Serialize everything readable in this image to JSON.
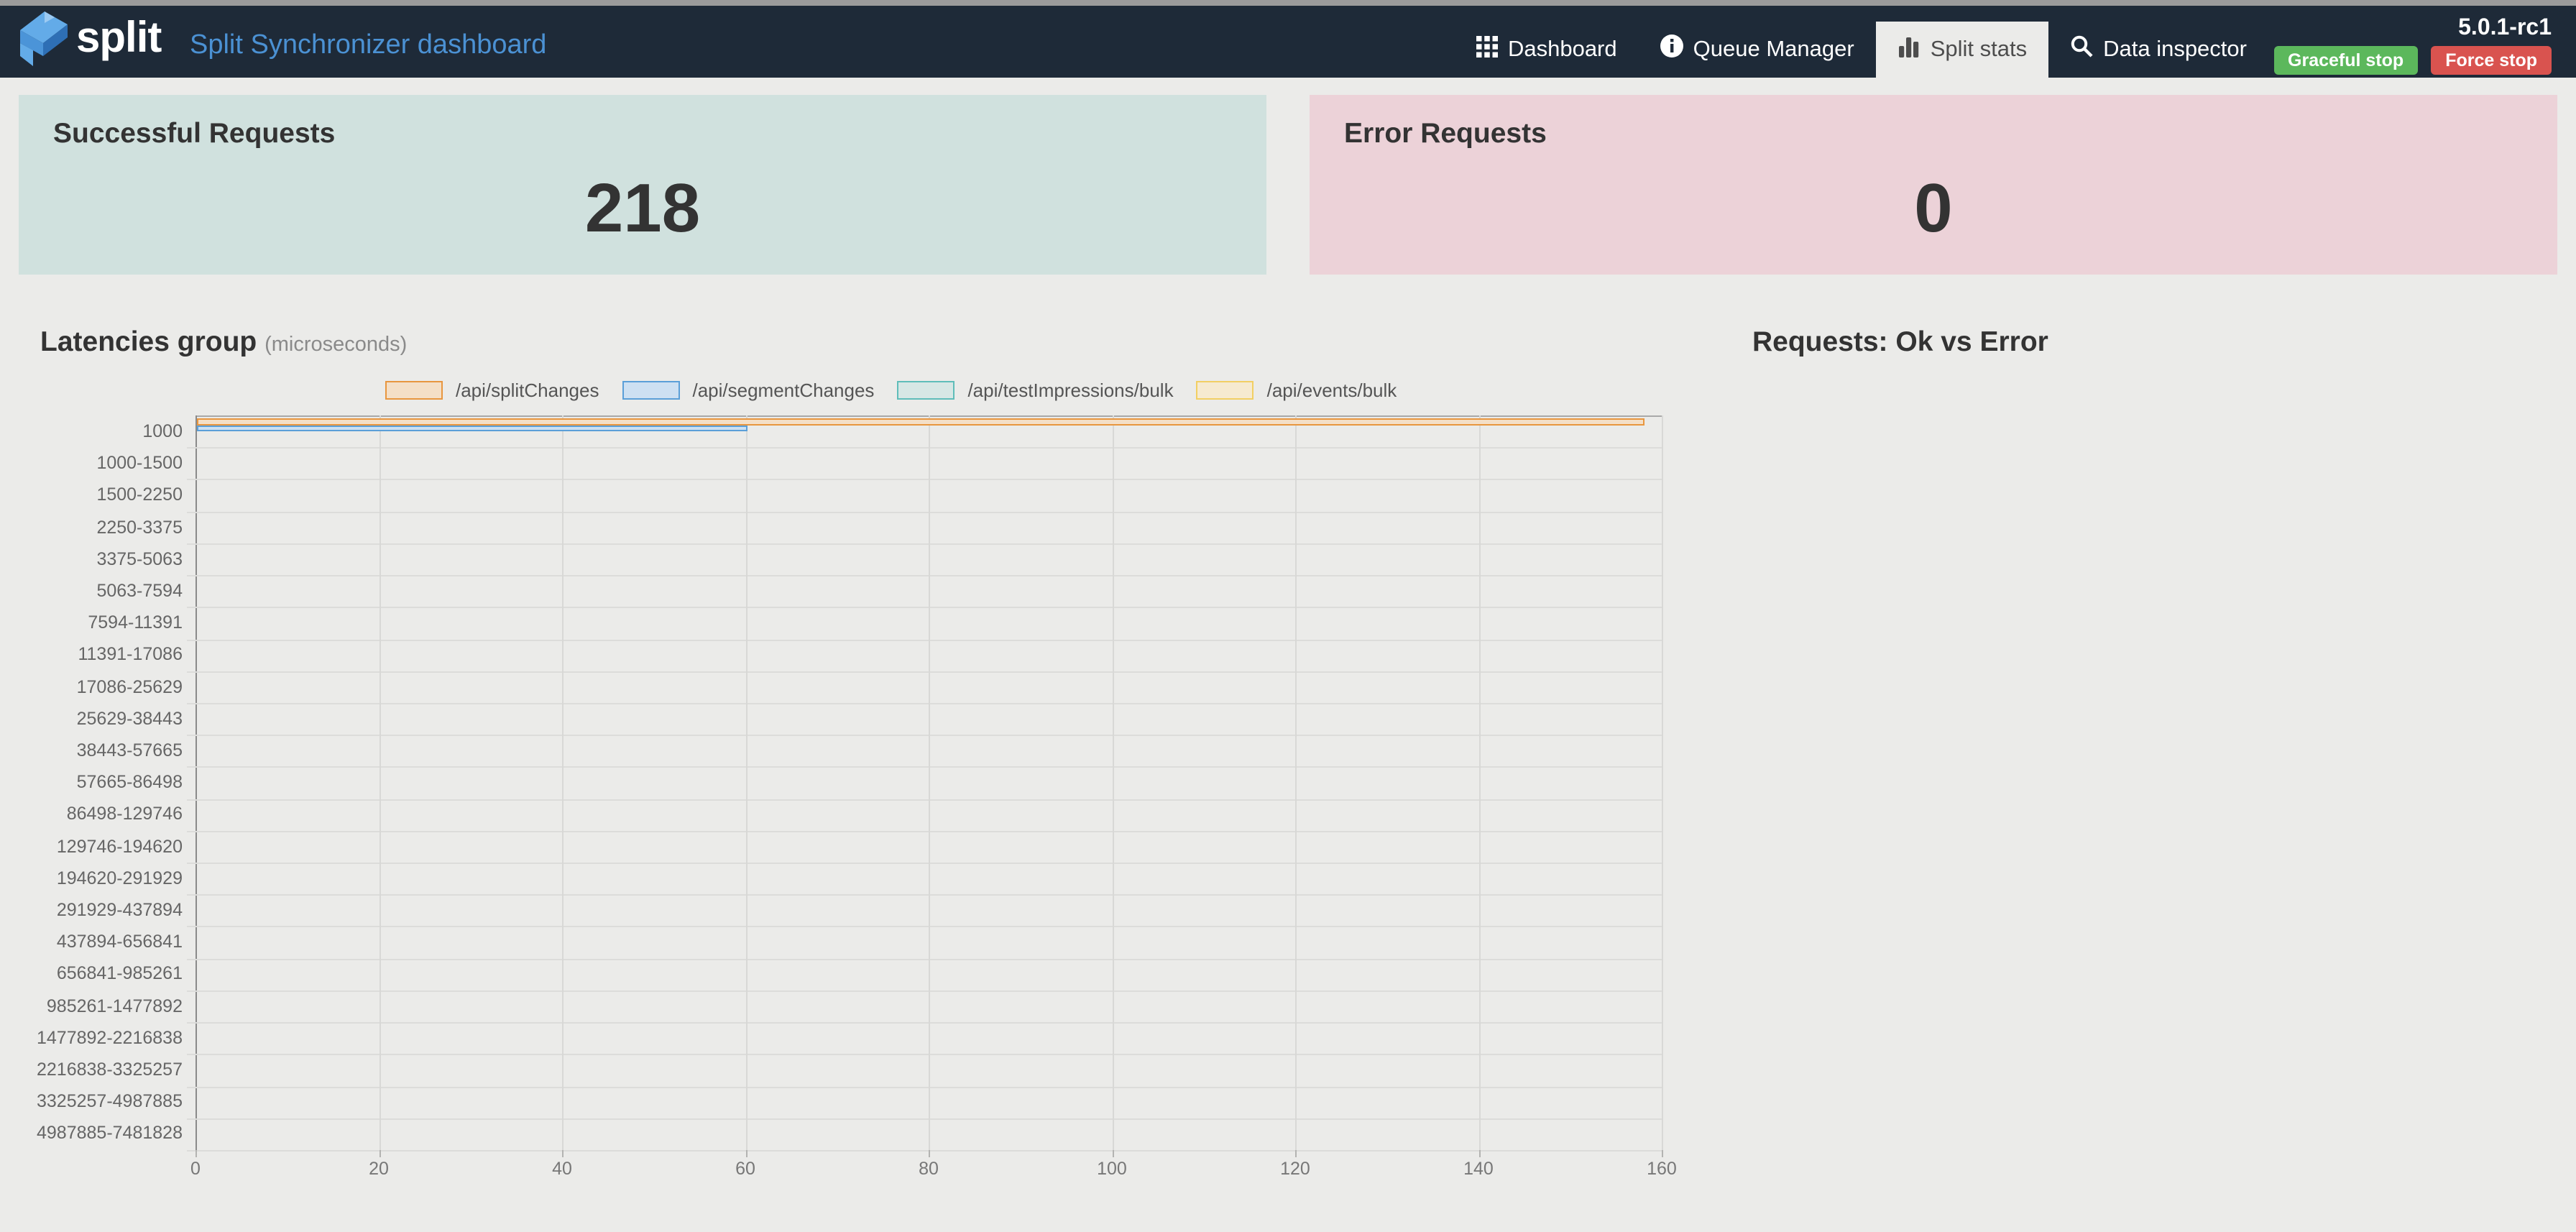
{
  "navbar": {
    "brand": "split",
    "title": "Split Synchronizer dashboard",
    "items": [
      {
        "label": "Dashboard",
        "icon": "grid-icon",
        "active": false
      },
      {
        "label": "Queue Manager",
        "icon": "info-icon",
        "active": false
      },
      {
        "label": "Split stats",
        "icon": "bar-chart-icon",
        "active": true
      },
      {
        "label": "Data inspector",
        "icon": "search-icon",
        "active": false
      }
    ],
    "version": "5.0.1-rc1",
    "graceful_stop_label": "Graceful stop",
    "force_stop_label": "Force stop"
  },
  "cards": {
    "success": {
      "title": "Successful Requests",
      "value": "218",
      "bg": "#d0e1de"
    },
    "error": {
      "title": "Error Requests",
      "value": "0",
      "bg": "#ecd2d8"
    }
  },
  "sections": {
    "latencies_title": "Latencies group",
    "latencies_unit": "(microseconds)",
    "requests_title": "Requests: Ok vs Error"
  },
  "colors": {
    "navbar_bg": "#1e2a38",
    "navbar_title": "#4b91d3",
    "page_bg": "#ebebe9",
    "graceful_stop": "#5cb85c",
    "force_stop": "#d9534f"
  },
  "chart_data": {
    "type": "bar",
    "orientation": "horizontal",
    "title": "Latencies group (microseconds)",
    "legend_position": "top",
    "grid": true,
    "xlim": [
      0,
      160
    ],
    "x_ticks": [
      0,
      20,
      40,
      60,
      80,
      100,
      120,
      140,
      160
    ],
    "categories": [
      "1000",
      "1000-1500",
      "1500-2250",
      "2250-3375",
      "3375-5063",
      "5063-7594",
      "7594-11391",
      "11391-17086",
      "17086-25629",
      "25629-38443",
      "38443-57665",
      "57665-86498",
      "86498-129746",
      "129746-194620",
      "194620-291929",
      "291929-437894",
      "437894-656841",
      "656841-985261",
      "985261-1477892",
      "1477892-2216838",
      "2216838-3325257",
      "3325257-4987885",
      "4987885-7481828"
    ],
    "series": [
      {
        "name": "/api/splitChanges",
        "color": "#e8963f",
        "fill": "#f4dfc7",
        "values": [
          158,
          0,
          0,
          0,
          0,
          0,
          0,
          0,
          0,
          0,
          0,
          0,
          0,
          0,
          0,
          0,
          0,
          0,
          0,
          0,
          0,
          0,
          0
        ]
      },
      {
        "name": "/api/segmentChanges",
        "color": "#5b9fd8",
        "fill": "#cde0f2",
        "values": [
          60,
          0,
          0,
          0,
          0,
          0,
          0,
          0,
          0,
          0,
          0,
          0,
          0,
          0,
          0,
          0,
          0,
          0,
          0,
          0,
          0,
          0,
          0
        ]
      },
      {
        "name": "/api/testImpressions/bulk",
        "color": "#5fbdb9",
        "fill": "#d7e7e5",
        "values": [
          0,
          0,
          0,
          0,
          0,
          0,
          0,
          0,
          0,
          0,
          0,
          0,
          0,
          0,
          0,
          0,
          0,
          0,
          0,
          0,
          0,
          0,
          0
        ]
      },
      {
        "name": "/api/events/bulk",
        "color": "#f2cf63",
        "fill": "#f6ead0",
        "values": [
          0,
          0,
          0,
          0,
          0,
          0,
          0,
          0,
          0,
          0,
          0,
          0,
          0,
          0,
          0,
          0,
          0,
          0,
          0,
          0,
          0,
          0,
          0
        ]
      }
    ]
  }
}
